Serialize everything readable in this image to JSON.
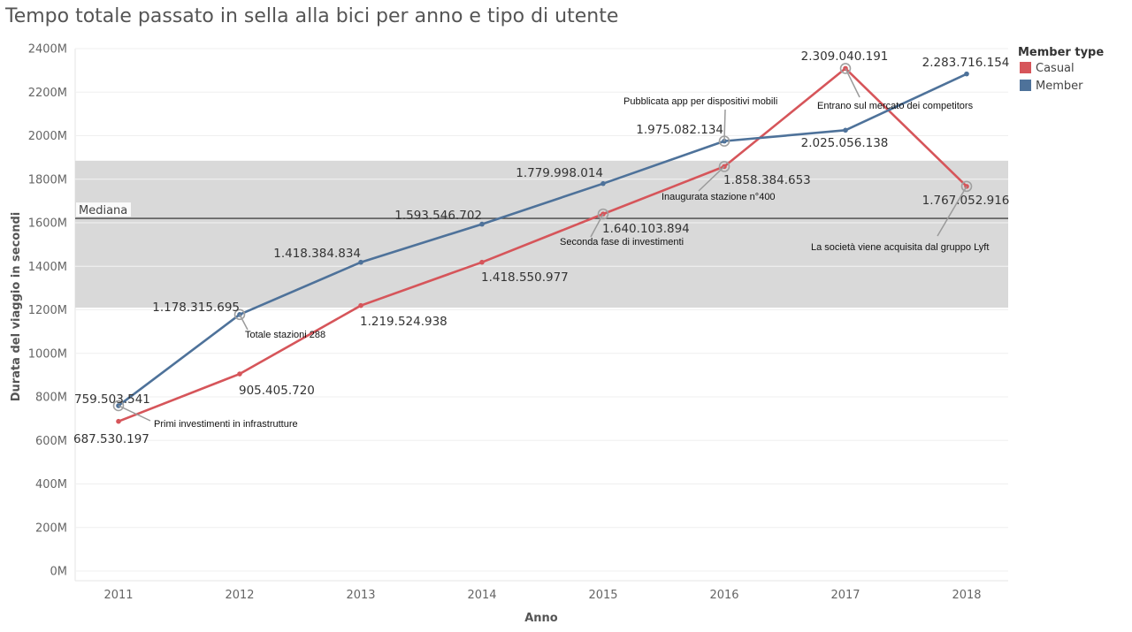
{
  "title": "Tempo totale passato in sella alla bici per anno e tipo di utente",
  "chart_data": {
    "type": "line",
    "title": "Tempo totale passato in sella alla bici per anno e tipo di utente",
    "xlabel": "Anno",
    "ylabel": "Durata del viaggio in secondi",
    "x": [
      "2011",
      "2012",
      "2013",
      "2014",
      "2015",
      "2016",
      "2017",
      "2018"
    ],
    "ylim": [
      0,
      2400000000
    ],
    "yticks": [
      {
        "value": 0,
        "label": "0M"
      },
      {
        "value": 200000000,
        "label": "200M"
      },
      {
        "value": 400000000,
        "label": "400M"
      },
      {
        "value": 600000000,
        "label": "600M"
      },
      {
        "value": 800000000,
        "label": "800M"
      },
      {
        "value": 1000000000,
        "label": "1000M"
      },
      {
        "value": 1200000000,
        "label": "1200M"
      },
      {
        "value": 1400000000,
        "label": "1400M"
      },
      {
        "value": 1600000000,
        "label": "1600M"
      },
      {
        "value": 1800000000,
        "label": "1800M"
      },
      {
        "value": 2000000000,
        "label": "2000M"
      },
      {
        "value": 2200000000,
        "label": "2200M"
      },
      {
        "value": 2400000000,
        "label": "2400M"
      }
    ],
    "grid": true,
    "legend": {
      "title": "Member type",
      "position": "top-right"
    },
    "series": [
      {
        "name": "Casual",
        "color": "#d6555a",
        "values": [
          687530197,
          905405720,
          1219524938,
          1418550977,
          1640103894,
          1858384653,
          2309040191,
          1767052916
        ],
        "labels": [
          "687.530.197",
          "905.405.720",
          "1.219.524.938",
          "1.418.550.977",
          "1.640.103.894",
          "1.858.384.653",
          "2.309.040.191",
          "1.767.052.916"
        ]
      },
      {
        "name": "Member",
        "color": "#4e729a",
        "values": [
          759503541,
          1178315695,
          1418384834,
          1593546702,
          1779998014,
          1975082134,
          2025056138,
          2283716154
        ],
        "labels": [
          "759.503.541",
          "1.178.315.695",
          "1.418.384.834",
          "1.593.546.702",
          "1.779.998.014",
          "1.975.082.134",
          "2.025.056.138",
          "2.283.716.154"
        ]
      }
    ],
    "reference_line": {
      "label": "Mediana",
      "value": 1620000000
    },
    "reference_band": {
      "from": 1210000000,
      "to": 1885000000,
      "color": "#d9d9d9"
    },
    "annotations": [
      {
        "series": "Member",
        "year": "2011",
        "text": "Primi investimenti in infrastrutture"
      },
      {
        "series": "Member",
        "year": "2012",
        "text": "Totale stazioni 288"
      },
      {
        "series": "Casual",
        "year": "2015",
        "text": "Seconda fase di investimenti"
      },
      {
        "series": "Member",
        "year": "2016",
        "text": "Pubblicata app per dispositivi mobili"
      },
      {
        "series": "Casual",
        "year": "2016",
        "text": "Inaugurata stazione n°400"
      },
      {
        "series": "Casual",
        "year": "2017",
        "text": "Entrano sul mercato dei competitors"
      },
      {
        "series": "Casual",
        "year": "2018",
        "text": "La società viene acquisita dal gruppo Lyft"
      }
    ]
  }
}
